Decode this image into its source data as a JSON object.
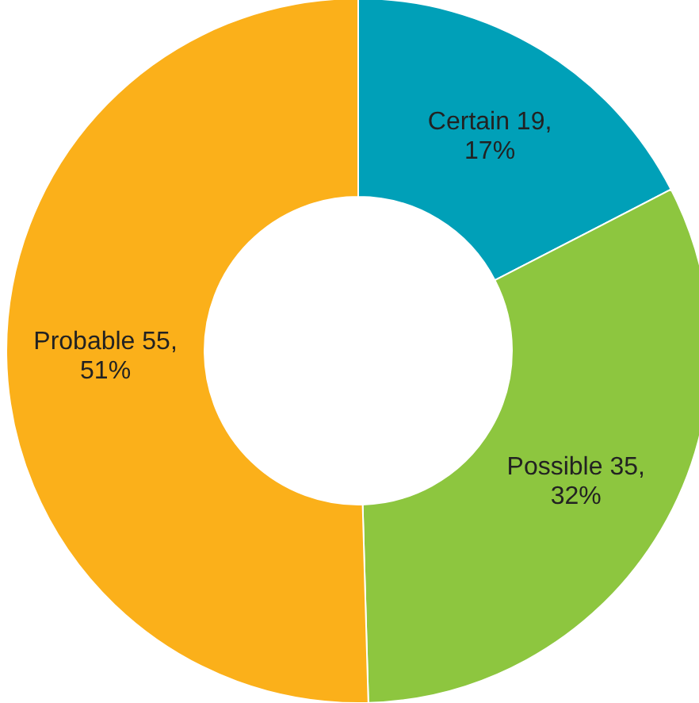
{
  "chart_data": {
    "type": "donut",
    "categories": [
      "Certain",
      "Possible",
      "Probable"
    ],
    "values": [
      19,
      35,
      55
    ],
    "colors": [
      "#00a0b8",
      "#8dc63f",
      "#fbb01a"
    ],
    "value_labels": [
      "19, 17%",
      "35, 32%",
      "55, 51%"
    ]
  }
}
